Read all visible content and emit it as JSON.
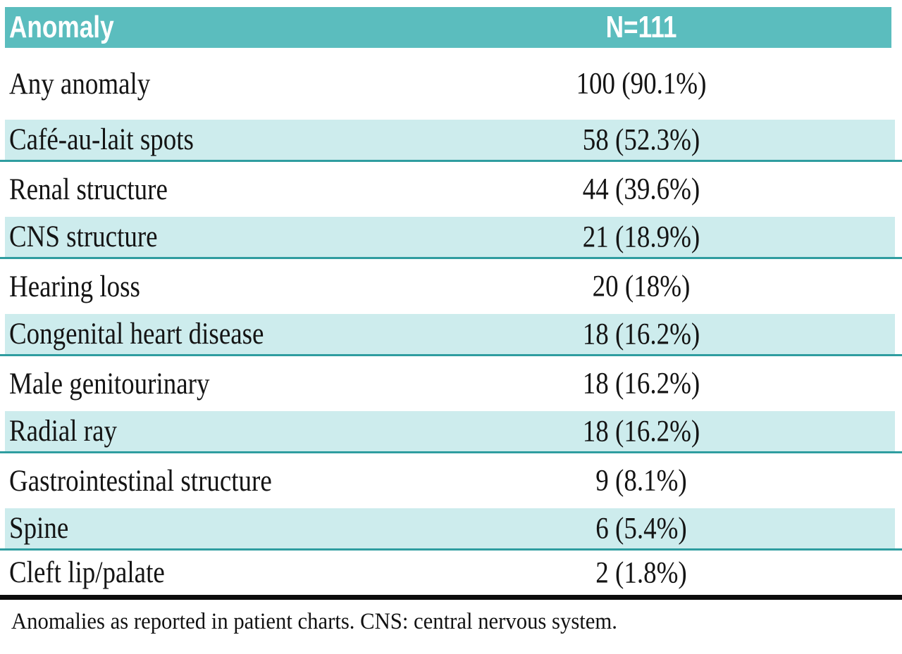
{
  "table": {
    "header": {
      "anomaly_label": "Anomaly",
      "n_label": "N=111"
    },
    "rows": [
      {
        "label": "Any anomaly",
        "value": "100 (90.1%)"
      },
      {
        "label": "Café-au-lait spots",
        "value": "58 (52.3%)"
      },
      {
        "label": "Renal structure",
        "value": "44 (39.6%)"
      },
      {
        "label": "CNS structure",
        "value": "21 (18.9%)"
      },
      {
        "label": "Hearing loss",
        "value": "20 (18%)"
      },
      {
        "label": "Congenital heart disease",
        "value": "18 (16.2%)"
      },
      {
        "label": "Male genitourinary",
        "value": "18 (16.2%)"
      },
      {
        "label": "Radial ray",
        "value": "18 (16.2%)"
      },
      {
        "label": "Gastrointestinal structure",
        "value": "9 (8.1%)"
      },
      {
        "label": "Spine",
        "value": "6 (5.4%)"
      },
      {
        "label": "Cleft lip/palate",
        "value": "2 (1.8%)"
      }
    ],
    "footnote": "Anomalies as reported in patient charts. CNS: central nervous system."
  },
  "colors": {
    "header_background": "#5bbdbe",
    "row_shading": "#cdeced",
    "row_border": "#2f9da0",
    "bottom_rule": "#0c0c0c",
    "text": "#141414",
    "header_text": "#ffffff"
  },
  "chart_data": {
    "type": "table",
    "columns": [
      "Anomaly",
      "N=111"
    ],
    "rows": [
      [
        "Any anomaly",
        "100 (90.1%)"
      ],
      [
        "Café-au-lait spots",
        "58 (52.3%)"
      ],
      [
        "Renal structure",
        "44 (39.6%)"
      ],
      [
        "CNS structure",
        "21 (18.9%)"
      ],
      [
        "Hearing loss",
        "20 (18%)"
      ],
      [
        "Congenital heart disease",
        "18 (16.2%)"
      ],
      [
        "Male genitourinary",
        "18 (16.2%)"
      ],
      [
        "Radial ray",
        "18 (16.2%)"
      ],
      [
        "Gastrointestinal structure",
        "9 (8.1%)"
      ],
      [
        "Spine",
        "6 (5.4%)"
      ],
      [
        "Cleft lip/palate",
        "2 (1.8%)"
      ]
    ],
    "footnote": "Anomalies as reported in patient charts. CNS: central nervous system."
  }
}
